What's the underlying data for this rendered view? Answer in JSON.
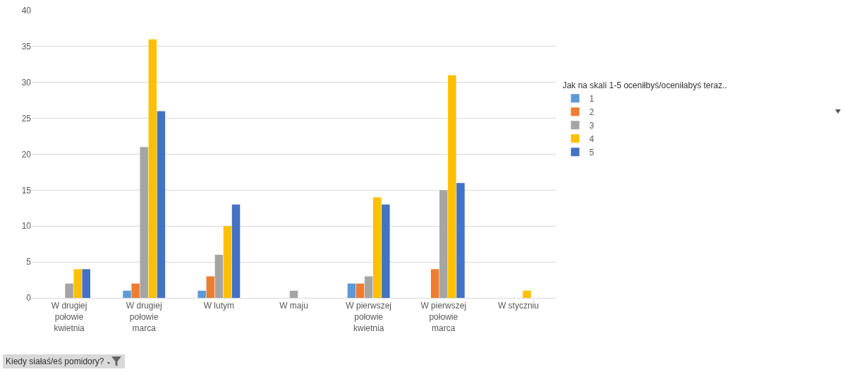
{
  "chart_data": {
    "type": "bar",
    "categories": [
      "W drugiej połowie kwietnia",
      "W drugiej połowie marca",
      "W lutym",
      "W maju",
      "W pierwszej połowie kwietnia",
      "W pierwszej połowie marca",
      "W styczniu"
    ],
    "series": [
      {
        "name": "1",
        "color": "#5b9bd5",
        "values": [
          null,
          1,
          1,
          null,
          2,
          null,
          null
        ]
      },
      {
        "name": "2",
        "color": "#ed7d31",
        "values": [
          null,
          2,
          3,
          null,
          2,
          4,
          null
        ]
      },
      {
        "name": "3",
        "color": "#a5a5a5",
        "values": [
          2,
          21,
          6,
          1,
          3,
          15,
          null
        ]
      },
      {
        "name": "4",
        "color": "#ffc000",
        "values": [
          4,
          36,
          10,
          null,
          14,
          31,
          1
        ]
      },
      {
        "name": "5",
        "color": "#4472c4",
        "values": [
          4,
          26,
          13,
          null,
          13,
          16,
          null
        ]
      }
    ],
    "legend_title": "Jak na skali 1-5 oceniłbyś/oceniłabyś teraz..",
    "annotations": [
      "Kiedy siałaś/eś pomidory?"
    ],
    "ylim": [
      0,
      40
    ],
    "yticks": [
      0,
      5,
      10,
      15,
      20,
      25,
      30,
      35,
      40
    ],
    "grid": "y",
    "legend": "right"
  }
}
